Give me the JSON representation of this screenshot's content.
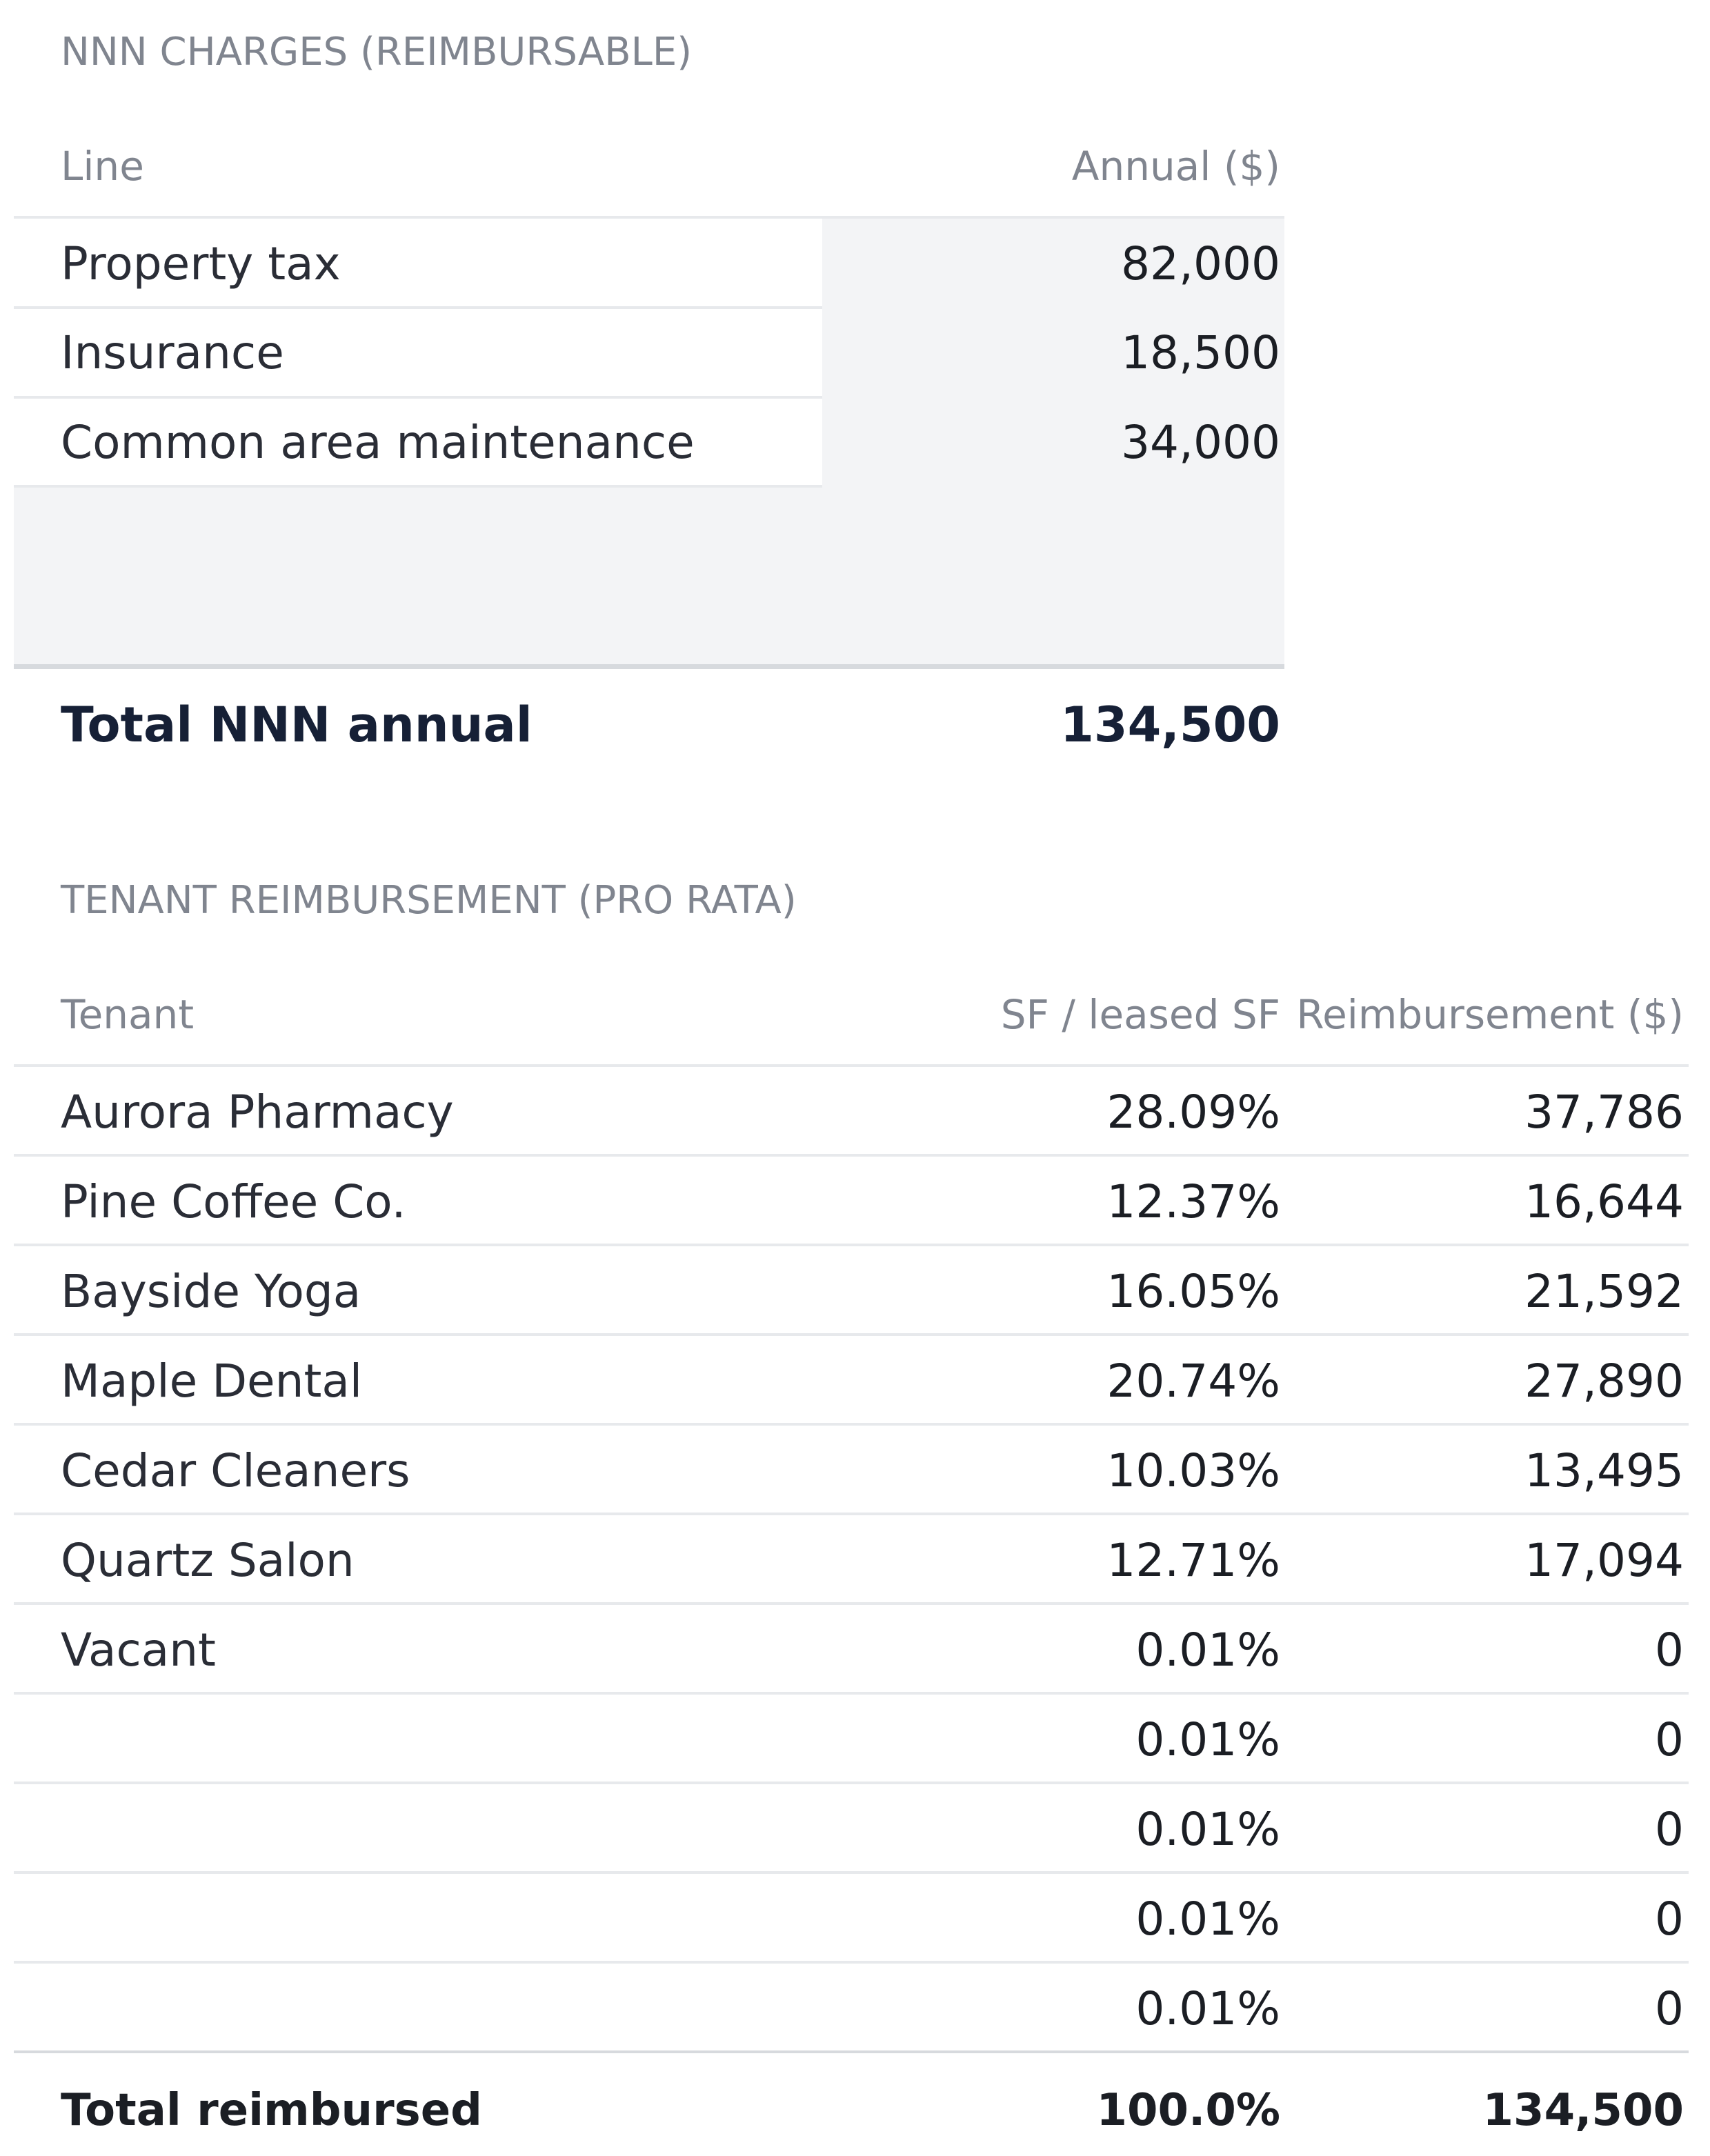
{
  "nnn": {
    "section_label": "NNN CHARGES (REIMBURSABLE)",
    "col_line": "Line",
    "col_annual": "Annual ($)",
    "rows": [
      {
        "line": "Property tax",
        "annual": "82,000"
      },
      {
        "line": "Insurance",
        "annual": "18,500"
      },
      {
        "line": "Common area maintenance",
        "annual": "34,000"
      }
    ],
    "total_label": "Total NNN annual",
    "total_value": "134,500",
    "colors": {
      "shade": "#f3f4f6",
      "total_text": "#162036"
    }
  },
  "tenant": {
    "section_label": "TENANT REIMBURSEMENT (PRO RATA)",
    "col_tenant": "Tenant",
    "col_share": "SF / leased SF",
    "col_reimb": "Reimbursement ($)",
    "rows": [
      {
        "tenant": "Aurora Pharmacy",
        "share": "28.09%",
        "reimb": "37,786"
      },
      {
        "tenant": "Pine Coffee Co.",
        "share": "12.37%",
        "reimb": "16,644"
      },
      {
        "tenant": "Bayside Yoga",
        "share": "16.05%",
        "reimb": "21,592"
      },
      {
        "tenant": "Maple Dental",
        "share": "20.74%",
        "reimb": "27,890"
      },
      {
        "tenant": "Cedar Cleaners",
        "share": "10.03%",
        "reimb": "13,495"
      },
      {
        "tenant": "Quartz Salon",
        "share": "12.71%",
        "reimb": "17,094"
      },
      {
        "tenant": "Vacant",
        "share": "0.01%",
        "reimb": "0"
      },
      {
        "tenant": "",
        "share": "0.01%",
        "reimb": "0"
      },
      {
        "tenant": "",
        "share": "0.01%",
        "reimb": "0"
      },
      {
        "tenant": "",
        "share": "0.01%",
        "reimb": "0"
      },
      {
        "tenant": "",
        "share": "0.01%",
        "reimb": "0"
      }
    ],
    "total_label": "Total reimbursed",
    "total_share": "100.0%",
    "total_reimb": "134,500"
  }
}
